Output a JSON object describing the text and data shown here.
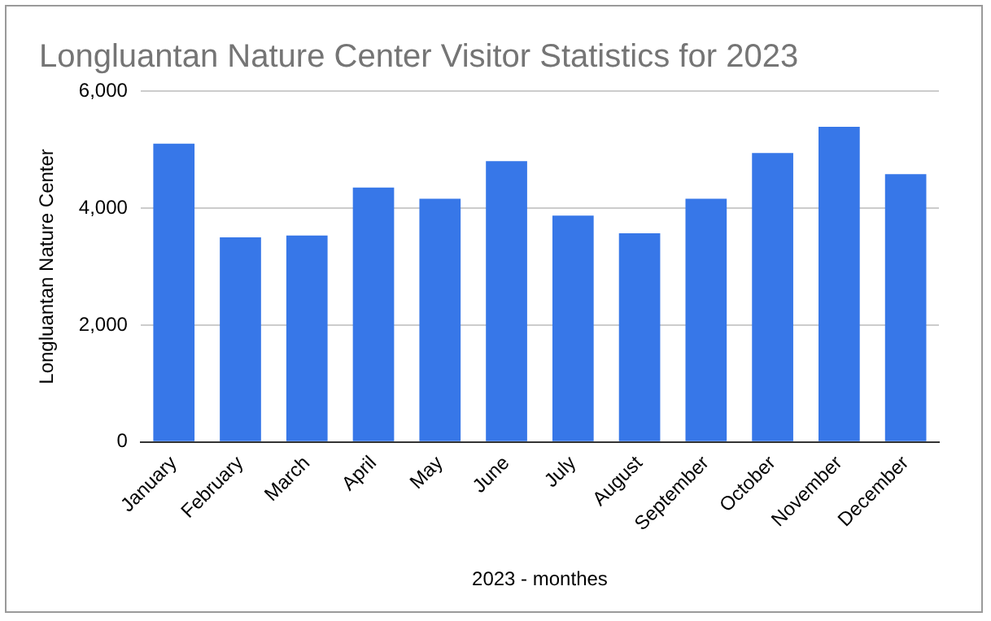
{
  "chart_data": {
    "type": "bar",
    "title": "Longluantan Nature Center Visitor Statistics for 2023",
    "xlabel": "2023 - monthes",
    "ylabel": "Longluantan Nature Center",
    "categories": [
      "January",
      "February",
      "March",
      "April",
      "May",
      "June",
      "July",
      "August",
      "September",
      "October",
      "November",
      "December"
    ],
    "values": [
      5100,
      3500,
      3530,
      4350,
      4160,
      4800,
      3870,
      3570,
      4160,
      4940,
      5390,
      4580
    ],
    "color": "#3777e8",
    "ylim": [
      0,
      6000
    ],
    "yticks": [
      {
        "value": 0,
        "label": "0"
      },
      {
        "value": 2000,
        "label": "2,000"
      },
      {
        "value": 4000,
        "label": "4,000"
      },
      {
        "value": 6000,
        "label": "6,000"
      }
    ],
    "grid": "y",
    "legend": false
  }
}
